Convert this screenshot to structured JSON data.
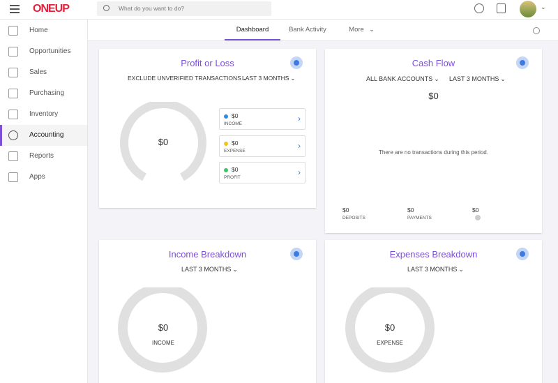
{
  "header": {
    "logo": "ONEUP",
    "search_placeholder": "What do you want to do?"
  },
  "sidebar": {
    "items": [
      "Home",
      "Opportunities",
      "Sales",
      "Purchasing",
      "Inventory",
      "Accounting",
      "Reports",
      "Apps"
    ]
  },
  "tabs": [
    "Dashboard",
    "Bank Activity",
    "More"
  ],
  "profit_or_loss": {
    "title": "Profit or Loss",
    "filters": [
      "EXCLUDE UNVERIFIED TRANSACTIONS",
      "LAST 3 MONTHS"
    ],
    "total": "$0",
    "legend": [
      {
        "amount": "$0",
        "label": "INCOME"
      },
      {
        "amount": "$0",
        "label": "EXPENSE"
      },
      {
        "amount": "$0",
        "label": "PROFIT"
      }
    ]
  },
  "cash_flow": {
    "title": "Cash Flow",
    "filters": [
      "ALL BANK ACCOUNTS",
      "LAST 3 MONTHS"
    ],
    "total": "$0",
    "message": "There are no transactions during this period.",
    "footer": [
      {
        "amount": "$0",
        "label": "DEPOSITS"
      },
      {
        "amount": "$0",
        "label": "PAYMENTS"
      },
      {
        "amount": "$0"
      }
    ]
  },
  "income_breakdown": {
    "title": "Income Breakdown",
    "filter": "LAST 3 MONTHS",
    "amount": "$0",
    "label": "INCOME"
  },
  "expenses_breakdown": {
    "title": "Expenses Breakdown",
    "filter": "LAST 3 MONTHS",
    "amount": "$0",
    "label": "EXPENSE"
  }
}
